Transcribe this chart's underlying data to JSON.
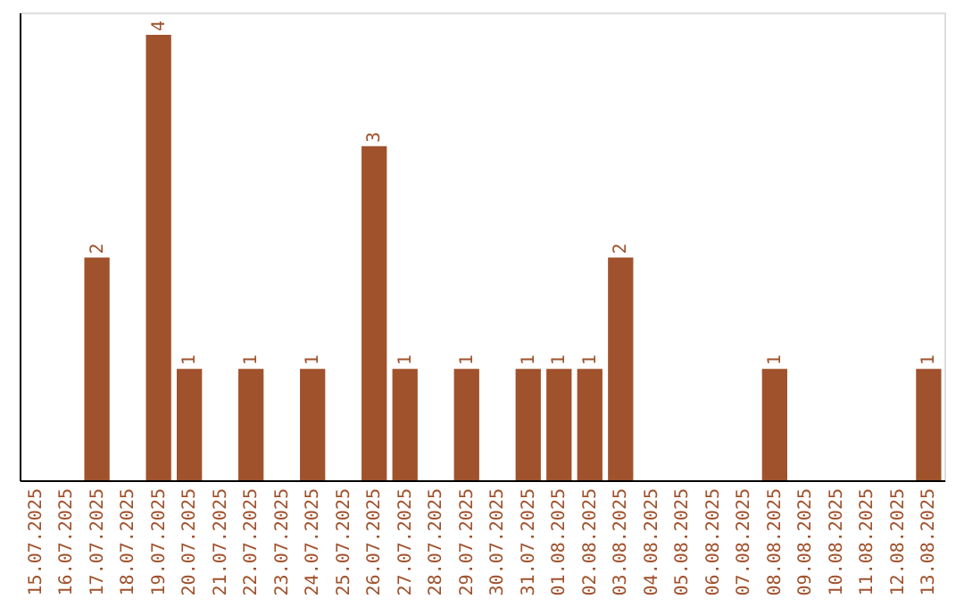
{
  "chart_data": {
    "type": "bar",
    "categories": [
      "15.07.2025",
      "16.07.2025",
      "17.07.2025",
      "18.07.2025",
      "19.07.2025",
      "20.07.2025",
      "21.07.2025",
      "22.07.2025",
      "23.07.2025",
      "24.07.2025",
      "25.07.2025",
      "26.07.2025",
      "27.07.2025",
      "28.07.2025",
      "29.07.2025",
      "30.07.2025",
      "31.07.2025",
      "01.08.2025",
      "02.08.2025",
      "03.08.2025",
      "04.08.2025",
      "05.08.2025",
      "06.08.2025",
      "07.08.2025",
      "08.08.2025",
      "09.08.2025",
      "10.08.2025",
      "11.08.2025",
      "12.08.2025",
      "13.08.2025"
    ],
    "values": [
      0,
      0,
      2,
      0,
      4,
      1,
      0,
      1,
      0,
      1,
      0,
      3,
      1,
      0,
      1,
      0,
      1,
      1,
      1,
      2,
      0,
      0,
      0,
      0,
      1,
      0,
      0,
      0,
      0,
      1
    ],
    "value_labels": [
      null,
      null,
      "2",
      null,
      "4",
      "1",
      null,
      "1",
      null,
      "1",
      null,
      "3",
      "1",
      null,
      "1",
      null,
      "1",
      "1",
      "1",
      "2",
      null,
      null,
      null,
      null,
      "1",
      null,
      null,
      null,
      null,
      "1"
    ],
    "color": "#a0522d",
    "ylim": [
      0,
      4.2
    ],
    "tick_labels": "x",
    "grid": false
  }
}
